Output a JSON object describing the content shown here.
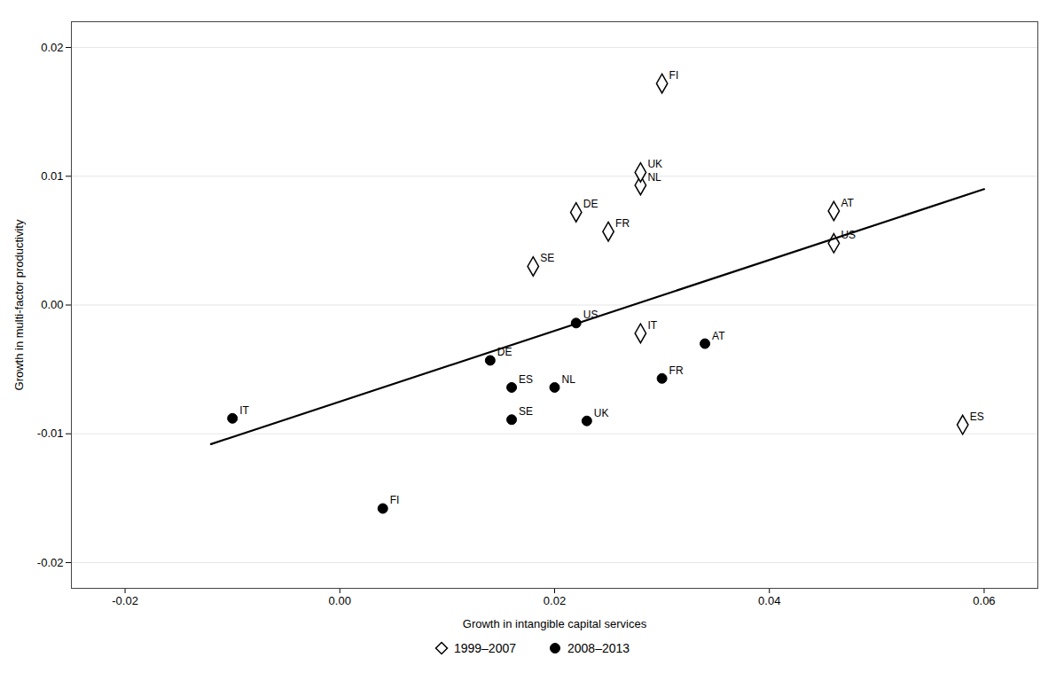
{
  "chart_data": {
    "type": "scatter",
    "xlabel": "Growth in intangible capital services",
    "ylabel": "Growth in multi-factor productivity",
    "xlim": [
      -0.025,
      0.065
    ],
    "ylim": [
      -0.022,
      0.022
    ],
    "xticks": [
      -0.02,
      {
        "value": 0,
        "label": "0.00"
      },
      0.02,
      0.04,
      0.06
    ],
    "yticks": [
      -0.02,
      -0.01,
      {
        "value": 0,
        "label": "0.00"
      },
      0.01,
      0.02
    ],
    "grid": "y",
    "legend": "bottom",
    "series": [
      {
        "name": "1999–2007",
        "type": "scatter",
        "marker": "diamond",
        "color": "#000000",
        "x": [
          0.046,
          0.03,
          0.025,
          0.022,
          0.028,
          0.028,
          0.058,
          0.018,
          0.028,
          0.046
        ],
        "values": [
          0.0073,
          0.0172,
          0.0057,
          0.0072,
          -0.0022,
          0.0093,
          -0.0093,
          0.003,
          0.0103,
          0.0048
        ],
        "labels": [
          "AT",
          "FI",
          "FR",
          "DE",
          "IT",
          "NL",
          "ES",
          "SE",
          "UK",
          "US"
        ]
      },
      {
        "name": "2008–2013",
        "type": "scatter",
        "marker": "circle",
        "color": "#000000",
        "x": [
          0.034,
          0.004,
          0.03,
          0.014,
          -0.01,
          0.02,
          0.016,
          0.016,
          0.023,
          0.022
        ],
        "values": [
          -0.003,
          -0.0158,
          -0.0057,
          -0.0043,
          -0.0088,
          -0.0064,
          -0.0064,
          -0.0089,
          -0.009,
          -0.0014
        ],
        "labels": [
          "AT",
          "FI",
          "FR",
          "DE",
          "IT",
          "NL",
          "ES",
          "SE",
          "UK",
          "US"
        ]
      },
      {
        "type": "line",
        "color": "#000000",
        "x": [
          -0.012,
          0.06
        ],
        "values": [
          -0.0108,
          0.009
        ]
      }
    ]
  }
}
